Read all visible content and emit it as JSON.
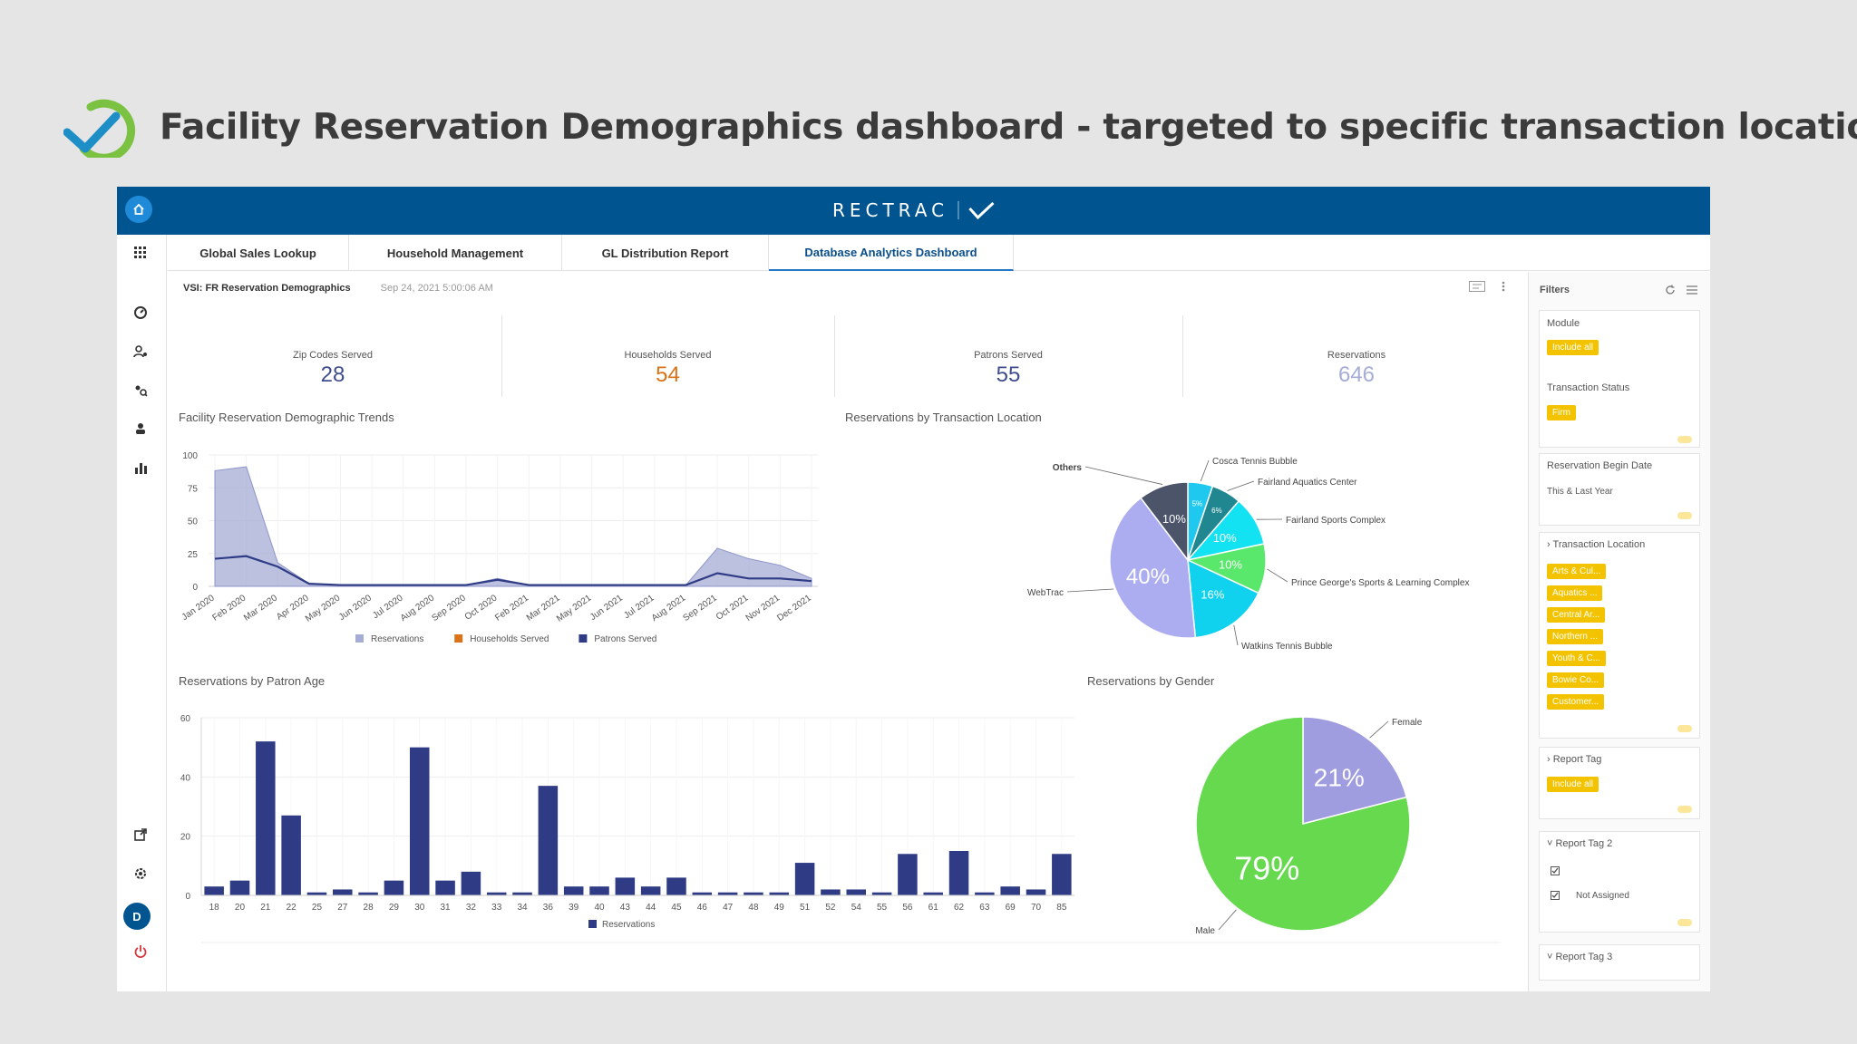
{
  "slide": {
    "title": "Facility Reservation Demographics dashboard - targeted to specific transaction locations"
  },
  "app": {
    "brand": "RECTRAC"
  },
  "tabs": [
    {
      "label": "Global Sales Lookup"
    },
    {
      "label": "Household Management"
    },
    {
      "label": "GL Distribution Report"
    },
    {
      "label": "Database Analytics Dashboard",
      "active": true
    }
  ],
  "leftnav": {
    "avatar": "D"
  },
  "dashboard": {
    "title": "VSI: FR Reservation Demographics",
    "date": "Sep 24, 2021 5:00:06 AM"
  },
  "kpis": [
    {
      "label": "Zip Codes Served",
      "value": "28",
      "color": "#3f4d8f"
    },
    {
      "label": "Households Served",
      "value": "54",
      "color": "#d9731a"
    },
    {
      "label": "Patrons Served",
      "value": "55",
      "color": "#3f4d8f"
    },
    {
      "label": "Reservations",
      "value": "646",
      "color": "#a5acd6"
    }
  ],
  "panels": {
    "trends": "Facility Reservation Demographic Trends",
    "location": "Reservations by Transaction Location",
    "age": "Reservations by Patron Age",
    "gender": "Reservations by Gender"
  },
  "chart_data": [
    {
      "type": "area",
      "title": "Facility Reservation Demographic Trends",
      "x": [
        "Jan 2020",
        "Feb 2020",
        "Mar 2020",
        "Apr 2020",
        "May 2020",
        "Jun 2020",
        "Jul 2020",
        "Aug 2020",
        "Sep 2020",
        "Oct 2020",
        "Feb 2021",
        "Mar 2021",
        "May 2021",
        "Jun 2021",
        "Jul 2021",
        "Aug 2021",
        "Sep 2021",
        "Oct 2021",
        "Nov 2021",
        "Dec 2021"
      ],
      "ylim": [
        0,
        100
      ],
      "yticks": [
        0,
        25,
        50,
        75,
        100
      ],
      "series": [
        {
          "name": "Reservations",
          "color": "#a5acd6",
          "values": [
            88,
            91,
            18,
            2,
            1,
            1,
            1,
            1,
            1,
            6,
            1,
            1,
            1,
            1,
            1,
            1,
            29,
            21,
            16,
            6
          ]
        },
        {
          "name": "Households Served",
          "color": "#d9731a",
          "values": [
            21,
            23,
            15,
            2,
            1,
            1,
            1,
            1,
            1,
            5,
            1,
            1,
            1,
            1,
            1,
            1,
            10,
            6,
            6,
            4
          ]
        },
        {
          "name": "Patrons Served",
          "color": "#2f3c85",
          "values": [
            21,
            23,
            15,
            2,
            1,
            1,
            1,
            1,
            1,
            5,
            1,
            1,
            1,
            1,
            1,
            1,
            10,
            6,
            6,
            4
          ]
        }
      ],
      "legend": "bottom"
    },
    {
      "type": "pie",
      "title": "Reservations by Transaction Location",
      "slices": [
        {
          "label": "Cosca Tennis Bubble",
          "value": 5,
          "text": "5%",
          "color": "#1fc8ee"
        },
        {
          "label": "Fairland Aquatics Center",
          "value": 6,
          "text": "6%",
          "color": "#20868f"
        },
        {
          "label": "Fairland Sports Complex",
          "value": 10,
          "text": "10%",
          "color": "#13e2f2"
        },
        {
          "label": "Prince George's Sports & Learning Complex",
          "value": 10,
          "text": "10%",
          "color": "#59e86b"
        },
        {
          "label": "Watkins Tennis Bubble",
          "value": 16,
          "text": "16%",
          "color": "#10d2ee"
        },
        {
          "label": "WebTrac",
          "value": 40,
          "text": "40%",
          "color": "#acacf0"
        },
        {
          "label": "Others",
          "value": 10,
          "text": "10%",
          "color": "#4c546a"
        }
      ]
    },
    {
      "type": "bar",
      "title": "Reservations by Patron Age",
      "categories": [
        "18",
        "20",
        "21",
        "22",
        "25",
        "27",
        "28",
        "29",
        "30",
        "31",
        "32",
        "33",
        "34",
        "36",
        "39",
        "40",
        "43",
        "44",
        "45",
        "46",
        "47",
        "48",
        "49",
        "51",
        "52",
        "54",
        "55",
        "56",
        "61",
        "62",
        "63",
        "69",
        "70",
        "85"
      ],
      "series": [
        {
          "name": "Reservations",
          "color": "#2f3c85",
          "values": [
            3,
            5,
            52,
            27,
            1,
            2,
            1,
            5,
            50,
            5,
            8,
            1,
            1,
            37,
            3,
            3,
            6,
            3,
            6,
            1,
            1,
            1,
            1,
            11,
            2,
            2,
            1,
            14,
            1,
            15,
            1,
            3,
            2,
            14
          ]
        }
      ],
      "ylim": [
        0,
        60
      ],
      "yticks": [
        0,
        20,
        40,
        60
      ],
      "legend": "bottom"
    },
    {
      "type": "pie",
      "title": "Reservations by Gender",
      "slices": [
        {
          "label": "Female",
          "value": 21,
          "text": "21%",
          "color": "#9f9de0"
        },
        {
          "label": "Male",
          "value": 79,
          "text": "79%",
          "color": "#66d94f"
        }
      ]
    }
  ],
  "filters": {
    "title": "Filters",
    "module": {
      "label": "Module",
      "value": "Include all"
    },
    "status": {
      "label": "Transaction Status",
      "value": "Firm"
    },
    "begin_date": {
      "label": "Reservation Begin Date",
      "value": "This & Last Year"
    },
    "location": {
      "label": "Transaction Location",
      "values": [
        "Arts & Cul...",
        "Aquatics ...",
        "Central Ar...",
        "Northern ...",
        "Youth & C...",
        "Bowie Co...",
        "Customer..."
      ]
    },
    "report_tag": {
      "label": "Report Tag",
      "value": "Include all"
    },
    "report_tag2": {
      "label": "Report Tag 2",
      "option2": "Not Assigned"
    },
    "report_tag3": {
      "label": "Report Tag 3"
    }
  }
}
